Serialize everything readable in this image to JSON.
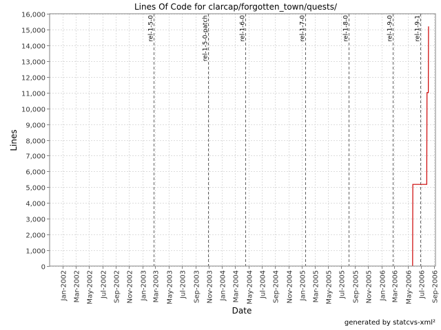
{
  "chart_data": {
    "type": "line",
    "title": "Lines Of Code for clarcap/forgotten_town/quests/",
    "xlabel": "Date",
    "ylabel": "Lines",
    "x_range": [
      "2001-11-01",
      "2006-09-06"
    ],
    "ylim": [
      0,
      16000
    ],
    "y_ticks": [
      0,
      1000,
      2000,
      3000,
      4000,
      5000,
      6000,
      7000,
      8000,
      9000,
      10000,
      11000,
      12000,
      13000,
      14000,
      15000,
      16000
    ],
    "y_tick_labels": [
      "0",
      "1,000",
      "2,000",
      "3,000",
      "4,000",
      "5,000",
      "6,000",
      "7,000",
      "8,000",
      "9,000",
      "10,000",
      "11,000",
      "12,000",
      "13,000",
      "14,000",
      "15,000",
      "16,000"
    ],
    "x_ticks": [
      "2002-01-01",
      "2002-03-01",
      "2002-05-01",
      "2002-07-01",
      "2002-09-01",
      "2002-11-01",
      "2003-01-01",
      "2003-03-01",
      "2003-05-01",
      "2003-07-01",
      "2003-09-01",
      "2003-11-01",
      "2004-01-01",
      "2004-03-01",
      "2004-05-01",
      "2004-07-01",
      "2004-09-01",
      "2004-11-01",
      "2005-01-01",
      "2005-03-01",
      "2005-05-01",
      "2005-07-01",
      "2005-09-01",
      "2005-11-01",
      "2006-01-01",
      "2006-03-01",
      "2006-05-01",
      "2006-07-01",
      "2006-09-01"
    ],
    "x_tick_labels": [
      "Jan-2002",
      "Mar-2002",
      "May-2002",
      "Jul-2002",
      "Sep-2002",
      "Nov-2002",
      "Jan-2003",
      "Mar-2003",
      "May-2003",
      "Jul-2003",
      "Sep-2003",
      "Nov-2003",
      "Jan-2004",
      "Mar-2004",
      "May-2004",
      "Jul-2004",
      "Sep-2004",
      "Nov-2004",
      "Jan-2005",
      "Mar-2005",
      "May-2005",
      "Jul-2005",
      "Sep-2005",
      "Nov-2005",
      "Jan-2006",
      "Mar-2006",
      "May-2006",
      "Jul-2006",
      "Sep-2006"
    ],
    "grid": true,
    "series": [
      {
        "color": "#cc0000",
        "step": true,
        "points": [
          {
            "x": "2006-05-24",
            "y": 0
          },
          {
            "x": "2006-05-25",
            "y": 5180
          },
          {
            "x": "2006-07-28",
            "y": 5180
          },
          {
            "x": "2006-07-29",
            "y": 11000
          },
          {
            "x": "2006-08-04",
            "y": 11000
          },
          {
            "x": "2006-08-05",
            "y": 15200
          }
        ]
      }
    ],
    "markers": [
      {
        "date": "2003-02-20",
        "label": "rel-1-5-0"
      },
      {
        "date": "2003-10-28",
        "label": "rel-1-5-0-patch"
      },
      {
        "date": "2004-04-18",
        "label": "rel-1-6-0"
      },
      {
        "date": "2005-01-18",
        "label": "rel-1-7-0"
      },
      {
        "date": "2005-08-05",
        "label": "rel-1-8-0"
      },
      {
        "date": "2006-02-22",
        "label": "rel-1-9-0"
      },
      {
        "date": "2006-06-28",
        "label": "rel-1-9-1"
      }
    ]
  },
  "footer": {
    "credit": "generated by statcvs-xml²"
  }
}
